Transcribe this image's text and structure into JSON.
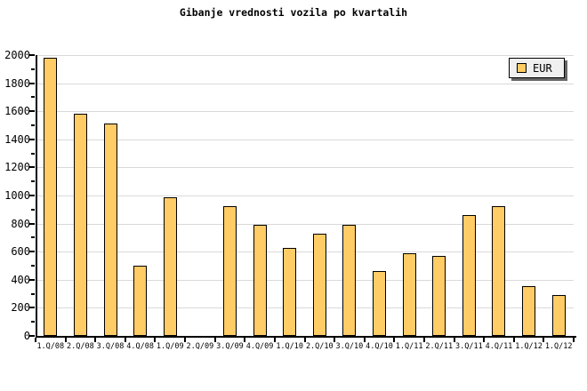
{
  "chart_data": {
    "type": "bar",
    "title": "Gibanje vrednosti vozila po kvartalih",
    "legend": {
      "label": "EUR",
      "position": "top-right"
    },
    "categories": [
      "1.Q/08",
      "2.Q/08",
      "3.Q/08",
      "4.Q/08",
      "1.Q/09",
      "2.Q/09",
      "3.Q/09",
      "4.Q/09",
      "1.Q/10",
      "2.Q/10",
      "3.Q/10",
      "4.Q/10",
      "1.Q/11",
      "2.Q/11",
      "3.Q/11",
      "4.Q/11",
      "1.Q/12",
      "1.Q/12"
    ],
    "values": [
      1980,
      1580,
      1510,
      500,
      990,
      0,
      925,
      790,
      625,
      725,
      790,
      460,
      590,
      570,
      860,
      925,
      355,
      290
    ],
    "series_name": "EUR",
    "xlabel": "",
    "ylabel": "",
    "ylim": [
      0,
      2000
    ],
    "y_major_step": 200,
    "y_minor_step": 100,
    "y_tick_labels": [
      "0",
      "200",
      "400",
      "600",
      "800",
      "1000",
      "1200",
      "1400",
      "1600",
      "1800",
      "2000"
    ],
    "grid": "horizontal-major-on",
    "notes": "no bar drawn for 2.Q/09 (value 0)",
    "colors": {
      "bar_fill": "#FFCC66",
      "bar_border": "#000000",
      "grid": "#D9D9D9",
      "axis": "#000000",
      "legend_bg": "#EFEFEF",
      "legend_shadow": "#666666",
      "background": "#FFFFFF",
      "text": "#000000"
    }
  }
}
